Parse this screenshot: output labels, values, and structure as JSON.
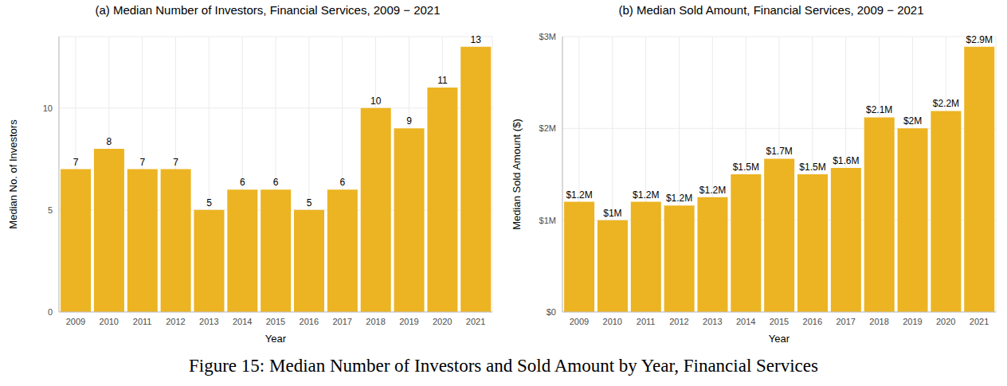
{
  "caption": "Figure 15: Median Number of Investors and Sold Amount by Year, Financial Services",
  "chart_data": [
    {
      "type": "bar",
      "title": "(a) Median Number of Investors, Financial Services, 2009 − 2021",
      "x_label": "Year",
      "y_label": "Median No. of Investors",
      "categories": [
        "2009",
        "2010",
        "2011",
        "2012",
        "2013",
        "2014",
        "2015",
        "2016",
        "2017",
        "2018",
        "2019",
        "2020",
        "2021"
      ],
      "values": [
        7,
        8,
        7,
        7,
        5,
        6,
        6,
        5,
        6,
        10,
        9,
        11,
        13
      ],
      "color": "#ECB422",
      "ylim": [
        0,
        13.5
      ],
      "yticks": [
        0,
        5,
        10
      ],
      "grid": true,
      "data_labels": true
    },
    {
      "type": "bar",
      "title": "(b) Median Sold Amount, Financial Services, 2009 − 2021",
      "x_label": "Year",
      "y_label": "Median Sold Amount ($)",
      "categories": [
        "2009",
        "2010",
        "2011",
        "2012",
        "2013",
        "2014",
        "2015",
        "2016",
        "2017",
        "2018",
        "2019",
        "2020",
        "2021"
      ],
      "values": [
        1200000,
        1000000,
        1200000,
        1160000,
        1250000,
        1500000,
        1670000,
        1500000,
        1570000,
        2120000,
        2000000,
        2190000,
        2890000
      ],
      "value_labels": [
        "$1.2M",
        "$1M",
        "$1.2M",
        "$1.2M",
        "$1.2M",
        "$1.5M",
        "$1.7M",
        "$1.5M",
        "$1.6M",
        "$2.1M",
        "$2M",
        "$2.2M",
        "$2.9M"
      ],
      "color": "#ECB422",
      "ylim": [
        0,
        3000000
      ],
      "yticks": [
        {
          "value": 0,
          "label": "$0"
        },
        {
          "value": 1000000,
          "label": "$1M"
        },
        {
          "value": 2000000,
          "label": "$2M"
        },
        {
          "value": 3000000,
          "label": "$3M"
        }
      ],
      "grid": true,
      "data_labels": true
    }
  ]
}
